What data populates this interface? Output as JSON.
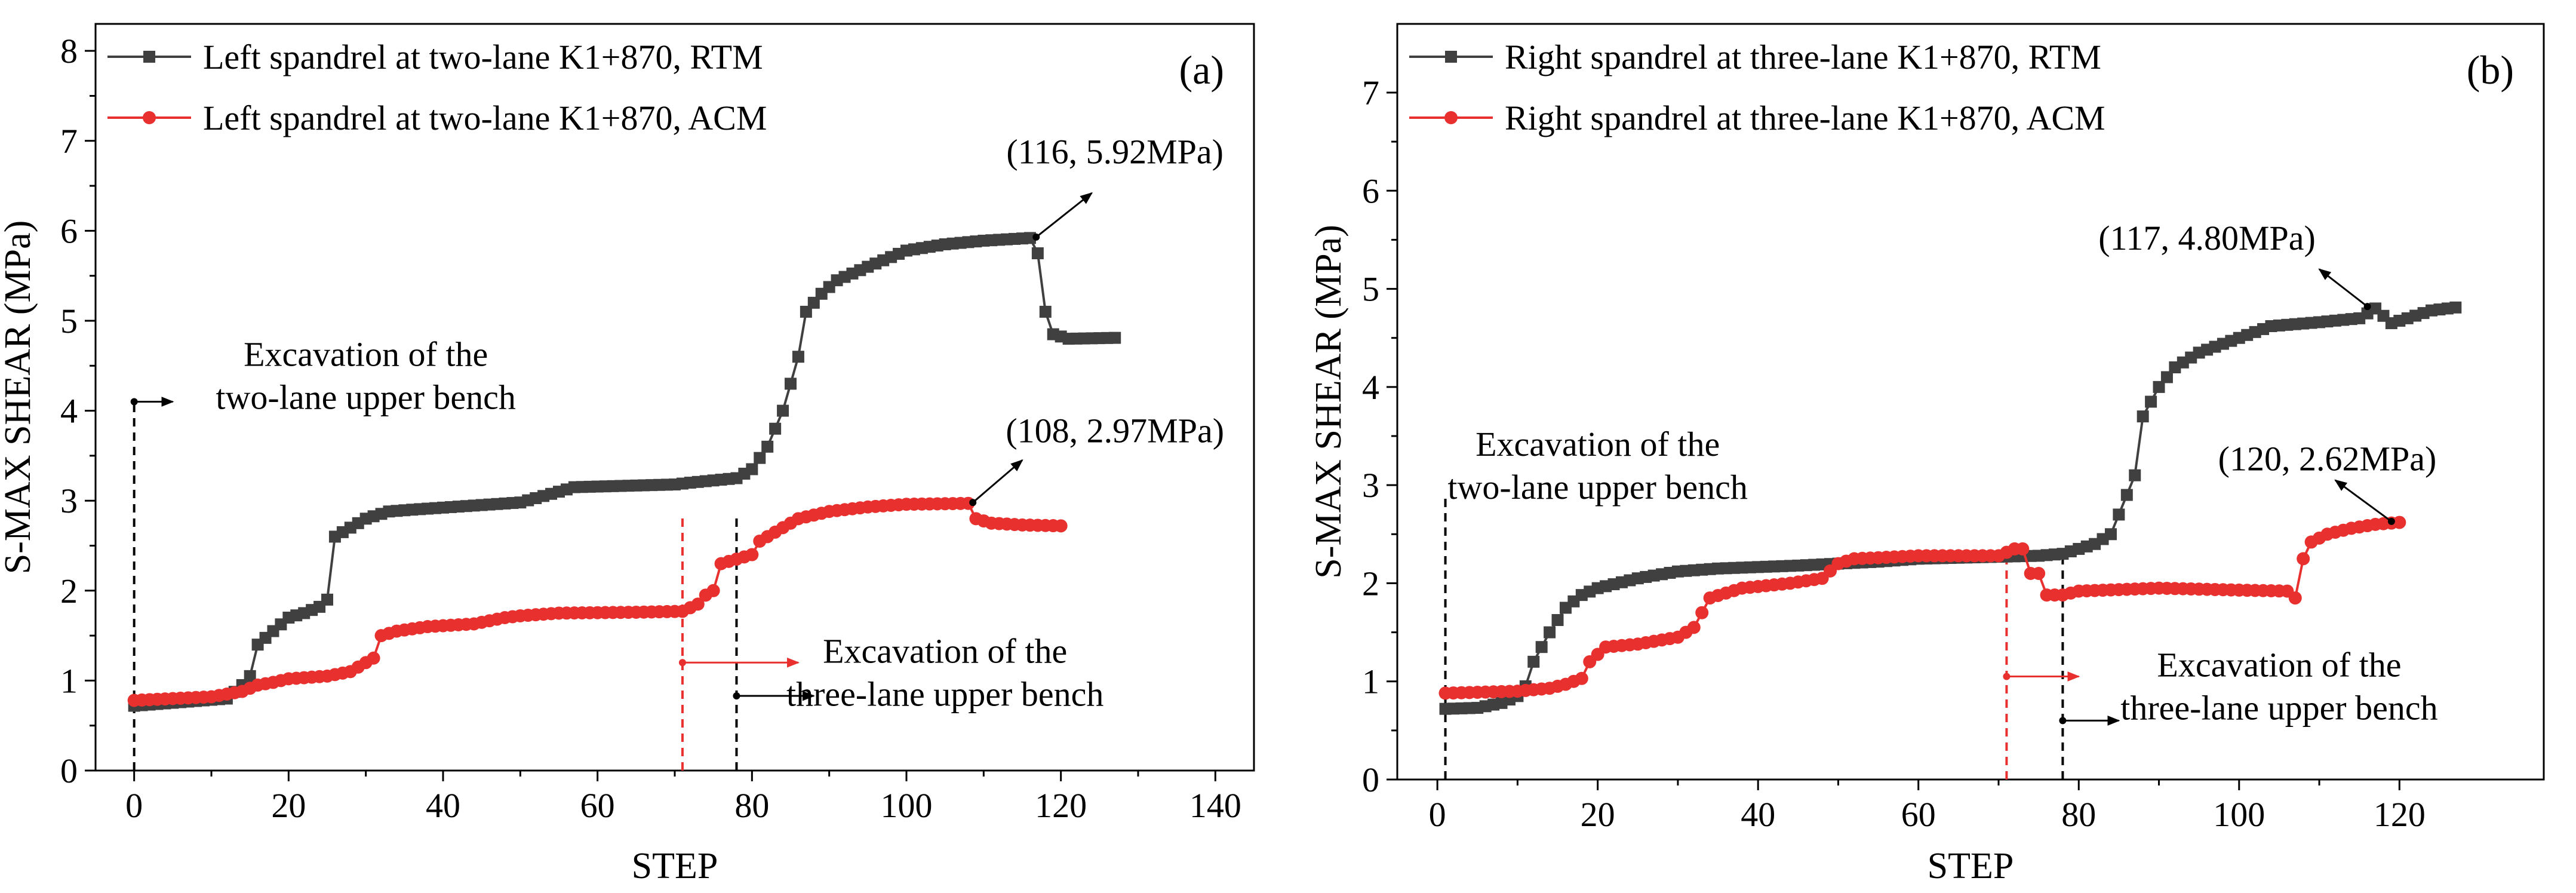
{
  "chart_data": [
    {
      "id": "a",
      "type": "line",
      "panel_label": "(a)",
      "xlabel": "STEP",
      "ylabel": "S-MAX SHEAR (MPa)",
      "xlim": [
        -5,
        145
      ],
      "ylim": [
        0,
        8.3
      ],
      "xticks": [
        0,
        20,
        40,
        60,
        80,
        100,
        120,
        140
      ],
      "yticks": [
        0,
        1,
        2,
        3,
        4,
        5,
        6,
        7,
        8
      ],
      "legend_position": "top-left",
      "series": [
        {
          "name": "Left spandrel at two-lane K1+870, RTM",
          "color": "#404040",
          "marker": "square",
          "points": [
            [
              0,
              0.72
            ],
            [
              12,
              0.8
            ],
            [
              14,
              0.95
            ],
            [
              15,
              1.05
            ],
            [
              16,
              1.4
            ],
            [
              18,
              1.55
            ],
            [
              20,
              1.7
            ],
            [
              22,
              1.75
            ],
            [
              24,
              1.82
            ],
            [
              25,
              1.9
            ],
            [
              26,
              2.6
            ],
            [
              28,
              2.7
            ],
            [
              30,
              2.8
            ],
            [
              33,
              2.88
            ],
            [
              36,
              2.9
            ],
            [
              50,
              2.98
            ],
            [
              55,
              3.1
            ],
            [
              57,
              3.15
            ],
            [
              70,
              3.18
            ],
            [
              72,
              3.2
            ],
            [
              78,
              3.25
            ],
            [
              80,
              3.35
            ],
            [
              82,
              3.6
            ],
            [
              84,
              4.0
            ],
            [
              86,
              4.6
            ],
            [
              87,
              5.1
            ],
            [
              89,
              5.3
            ],
            [
              91,
              5.45
            ],
            [
              95,
              5.6
            ],
            [
              100,
              5.78
            ],
            [
              105,
              5.85
            ],
            [
              110,
              5.89
            ],
            [
              116,
              5.92
            ],
            [
              117,
              5.75
            ],
            [
              118,
              5.1
            ],
            [
              119,
              4.85
            ],
            [
              121,
              4.8
            ],
            [
              127,
              4.81
            ]
          ]
        },
        {
          "name": "Left spandrel at two-lane K1+870, ACM",
          "color": "#e8302f",
          "marker": "circle",
          "points": [
            [
              0,
              0.78
            ],
            [
              10,
              0.82
            ],
            [
              14,
              0.88
            ],
            [
              16,
              0.95
            ],
            [
              18,
              0.98
            ],
            [
              20,
              1.02
            ],
            [
              25,
              1.05
            ],
            [
              28,
              1.1
            ],
            [
              30,
              1.2
            ],
            [
              31,
              1.25
            ],
            [
              32,
              1.5
            ],
            [
              34,
              1.55
            ],
            [
              38,
              1.6
            ],
            [
              44,
              1.63
            ],
            [
              48,
              1.7
            ],
            [
              50,
              1.72
            ],
            [
              55,
              1.75
            ],
            [
              65,
              1.76
            ],
            [
              71,
              1.77
            ],
            [
              73,
              1.85
            ],
            [
              74,
              1.95
            ],
            [
              75,
              2.0
            ],
            [
              76,
              2.3
            ],
            [
              78,
              2.35
            ],
            [
              80,
              2.4
            ],
            [
              81,
              2.55
            ],
            [
              83,
              2.65
            ],
            [
              86,
              2.8
            ],
            [
              90,
              2.88
            ],
            [
              95,
              2.93
            ],
            [
              100,
              2.96
            ],
            [
              108,
              2.97
            ],
            [
              109,
              2.8
            ],
            [
              111,
              2.75
            ],
            [
              115,
              2.73
            ],
            [
              120,
              2.72
            ]
          ]
        }
      ],
      "vlines": [
        {
          "x": 0,
          "color": "#000000"
        },
        {
          "x": 71,
          "color": "#e8302f"
        },
        {
          "x": 78,
          "color": "#000000"
        }
      ],
      "arrows": [
        {
          "x1": 0,
          "y1": 4.1,
          "x2": 5,
          "y2": 4.1,
          "color": "#000000"
        },
        {
          "x1": 71,
          "y1": 1.2,
          "x2": 86,
          "y2": 1.2,
          "color": "#e8302f"
        },
        {
          "x1": 78,
          "y1": 0.83,
          "x2": 88,
          "y2": 0.83,
          "color": "#000000"
        },
        {
          "x1": 116.8,
          "y1": 5.93,
          "x2": 124,
          "y2": 6.42,
          "color": "#000000"
        },
        {
          "x1": 108.6,
          "y1": 2.98,
          "x2": 115,
          "y2": 3.45,
          "color": "#000000"
        }
      ],
      "annotations": [
        {
          "lines": [
            "Excavation of the",
            "two-lane upper bench"
          ],
          "x": 30,
          "y": 4.5,
          "anchor": "middle"
        },
        {
          "lines": [
            "Excavation of the",
            "three-lane upper bench"
          ],
          "x": 105,
          "y": 1.2,
          "anchor": "middle"
        },
        {
          "lines": [
            "(116, 5.92MPa)"
          ],
          "x": 127,
          "y": 6.75,
          "anchor": "middle"
        },
        {
          "lines": [
            "(108, 2.97MPa)"
          ],
          "x": 127,
          "y": 3.65,
          "anchor": "middle"
        }
      ]
    },
    {
      "id": "b",
      "type": "line",
      "panel_label": "(b)",
      "xlabel": "STEP",
      "ylabel": "S-MAX SHEAR (MPa)",
      "xlim": [
        -5,
        138
      ],
      "ylim": [
        0,
        7.7
      ],
      "xticks": [
        0,
        20,
        40,
        60,
        80,
        100,
        120
      ],
      "yticks": [
        0,
        1,
        2,
        3,
        4,
        5,
        6,
        7
      ],
      "legend_position": "top-left",
      "series": [
        {
          "name": "Right spandrel at three-lane K1+870, RTM",
          "color": "#404040",
          "marker": "square",
          "points": [
            [
              1,
              0.72
            ],
            [
              5,
              0.73
            ],
            [
              8,
              0.78
            ],
            [
              10,
              0.85
            ],
            [
              11,
              0.95
            ],
            [
              12,
              1.2
            ],
            [
              14,
              1.5
            ],
            [
              16,
              1.75
            ],
            [
              18,
              1.88
            ],
            [
              20,
              1.95
            ],
            [
              25,
              2.05
            ],
            [
              30,
              2.12
            ],
            [
              35,
              2.15
            ],
            [
              45,
              2.18
            ],
            [
              55,
              2.22
            ],
            [
              60,
              2.25
            ],
            [
              70,
              2.27
            ],
            [
              75,
              2.28
            ],
            [
              78,
              2.3
            ],
            [
              80,
              2.35
            ],
            [
              82,
              2.4
            ],
            [
              84,
              2.5
            ],
            [
              85,
              2.7
            ],
            [
              87,
              3.1
            ],
            [
              88,
              3.7
            ],
            [
              90,
              4.0
            ],
            [
              92,
              4.2
            ],
            [
              95,
              4.35
            ],
            [
              100,
              4.5
            ],
            [
              104,
              4.62
            ],
            [
              110,
              4.66
            ],
            [
              115,
              4.7
            ],
            [
              117,
              4.8
            ],
            [
              119,
              4.65
            ],
            [
              121,
              4.7
            ],
            [
              124,
              4.78
            ],
            [
              127,
              4.81
            ]
          ]
        },
        {
          "name": "Right spandrel at three-lane K1+870, ACM",
          "color": "#e8302f",
          "marker": "circle",
          "points": [
            [
              1,
              0.88
            ],
            [
              10,
              0.9
            ],
            [
              14,
              0.93
            ],
            [
              16,
              0.97
            ],
            [
              18,
              1.03
            ],
            [
              19,
              1.2
            ],
            [
              21,
              1.35
            ],
            [
              25,
              1.38
            ],
            [
              30,
              1.45
            ],
            [
              32,
              1.55
            ],
            [
              34,
              1.85
            ],
            [
              38,
              1.95
            ],
            [
              44,
              2.0
            ],
            [
              48,
              2.05
            ],
            [
              50,
              2.2
            ],
            [
              52,
              2.25
            ],
            [
              55,
              2.26
            ],
            [
              60,
              2.28
            ],
            [
              70,
              2.28
            ],
            [
              72,
              2.35
            ],
            [
              73,
              2.35
            ],
            [
              74,
              2.1
            ],
            [
              75,
              2.1
            ],
            [
              76,
              1.88
            ],
            [
              78,
              1.88
            ],
            [
              80,
              1.92
            ],
            [
              90,
              1.95
            ],
            [
              100,
              1.93
            ],
            [
              106,
              1.92
            ],
            [
              107,
              1.85
            ],
            [
              108,
              2.25
            ],
            [
              109,
              2.42
            ],
            [
              111,
              2.5
            ],
            [
              114,
              2.56
            ],
            [
              117,
              2.6
            ],
            [
              120,
              2.62
            ]
          ]
        }
      ],
      "vlines": [
        {
          "x": 1,
          "color": "#000000"
        },
        {
          "x": 71,
          "color": "#e8302f"
        },
        {
          "x": 78,
          "color": "#000000"
        }
      ],
      "arrows": [
        {
          "x1": 71,
          "y1": 1.05,
          "x2": 80,
          "y2": 1.05,
          "color": "#e8302f"
        },
        {
          "x1": 78,
          "y1": 0.6,
          "x2": 85,
          "y2": 0.6,
          "color": "#000000"
        },
        {
          "x1": 116,
          "y1": 4.82,
          "x2": 110,
          "y2": 5.2,
          "color": "#000000"
        },
        {
          "x1": 119,
          "y1": 2.63,
          "x2": 112,
          "y2": 3.05,
          "color": "#000000"
        }
      ],
      "annotations": [
        {
          "lines": [
            "Excavation of the",
            "two-lane upper bench"
          ],
          "x": 20,
          "y": 3.3,
          "anchor": "middle"
        },
        {
          "lines": [
            "Excavation of the",
            "three-lane upper bench"
          ],
          "x": 105,
          "y": 1.05,
          "anchor": "middle"
        },
        {
          "lines": [
            "(117, 4.80MPa)"
          ],
          "x": 96,
          "y": 5.4,
          "anchor": "middle"
        },
        {
          "lines": [
            "(120, 2.62MPa)"
          ],
          "x": 111,
          "y": 3.15,
          "anchor": "middle"
        }
      ]
    }
  ]
}
